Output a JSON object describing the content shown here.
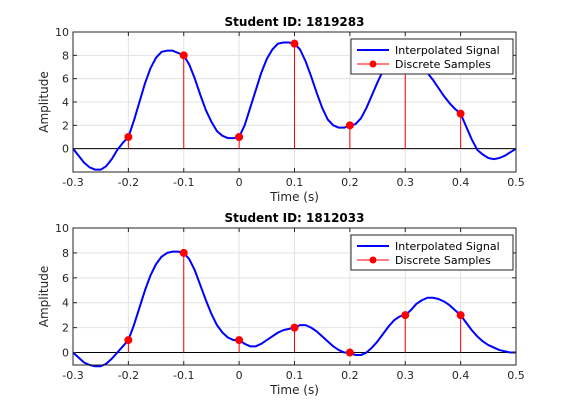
{
  "chart_data": [
    {
      "type": "line",
      "title": "Student ID: 1819283",
      "xlabel": "Time (s)",
      "ylabel": "Amplitude",
      "xlim": [
        -0.3,
        0.5
      ],
      "ylim": [
        -2,
        10
      ],
      "xticks": [
        -0.3,
        -0.2,
        -0.1,
        0,
        0.1,
        0.2,
        0.3,
        0.4,
        0.5
      ],
      "xtick_labels": [
        "-0.3",
        "-0.2",
        "-0.1",
        "0",
        "0.1",
        "0.2",
        "0.3",
        "0.4",
        "0.5"
      ],
      "yticks": [
        0,
        2,
        4,
        6,
        8,
        10
      ],
      "ytick_labels": [
        "0",
        "2",
        "4",
        "6",
        "8",
        "10"
      ],
      "grid": true,
      "legend_position": "top-right",
      "legend": [
        "Interpolated Signal",
        "Discrete Samples"
      ],
      "series": [
        {
          "name": "Interpolated Signal",
          "color": "#0000ff",
          "x": [
            -0.3,
            -0.29,
            -0.28,
            -0.27,
            -0.26,
            -0.25,
            -0.24,
            -0.23,
            -0.22,
            -0.21,
            -0.2,
            -0.19,
            -0.18,
            -0.17,
            -0.16,
            -0.15,
            -0.14,
            -0.13,
            -0.12,
            -0.11,
            -0.1,
            -0.09,
            -0.08,
            -0.07,
            -0.06,
            -0.05,
            -0.04,
            -0.03,
            -0.02,
            -0.01,
            0,
            0.01,
            0.02,
            0.03,
            0.04,
            0.05,
            0.06,
            0.07,
            0.08,
            0.09,
            0.1,
            0.11,
            0.12,
            0.13,
            0.14,
            0.15,
            0.16,
            0.17,
            0.18,
            0.19,
            0.2,
            0.21,
            0.22,
            0.23,
            0.24,
            0.25,
            0.26,
            0.27,
            0.28,
            0.29,
            0.3,
            0.31,
            0.32,
            0.33,
            0.34,
            0.35,
            0.36,
            0.37,
            0.38,
            0.39,
            0.4,
            0.41,
            0.42,
            0.43,
            0.44,
            0.45,
            0.46,
            0.47,
            0.48,
            0.49,
            0.5
          ],
          "y": [
            0,
            -0.6,
            -1.2,
            -1.6,
            -1.8,
            -1.8,
            -1.5,
            -0.9,
            -0.1,
            0.5,
            1,
            2.4,
            4,
            5.6,
            6.9,
            7.8,
            8.3,
            8.4,
            8.4,
            8.2,
            8,
            7.2,
            6,
            4.6,
            3.3,
            2.3,
            1.5,
            1.1,
            0.9,
            0.9,
            1,
            2,
            3.5,
            5,
            6.5,
            7.7,
            8.5,
            9,
            9.1,
            9.1,
            9,
            8.5,
            7.5,
            6.2,
            4.8,
            3.5,
            2.5,
            2,
            1.8,
            1.8,
            2,
            2.1,
            2.6,
            3.5,
            4.6,
            5.7,
            6.7,
            7.3,
            7.6,
            7.6,
            7.5,
            7.5,
            7.4,
            7,
            6.5,
            5.9,
            5.2,
            4.5,
            3.9,
            3.4,
            3,
            1.9,
            0.8,
            -0.1,
            -0.5,
            -0.8,
            -0.9,
            -0.8,
            -0.6,
            -0.3,
            0
          ]
        },
        {
          "name": "Discrete Samples",
          "color": "#ff0000",
          "x": [
            -0.2,
            -0.1,
            0,
            0.1,
            0.2,
            0.3,
            0.4
          ],
          "y": [
            1,
            8,
            1,
            9,
            2,
            7.5,
            3
          ]
        }
      ]
    },
    {
      "type": "line",
      "title": "Student ID: 1812033",
      "xlabel": "Time (s)",
      "ylabel": "Amplitude",
      "xlim": [
        -0.3,
        0.5
      ],
      "ylim": [
        -1,
        10
      ],
      "xticks": [
        -0.3,
        -0.2,
        -0.1,
        0,
        0.1,
        0.2,
        0.3,
        0.4,
        0.5
      ],
      "xtick_labels": [
        "-0.3",
        "-0.2",
        "-0.1",
        "0",
        "0.1",
        "0.2",
        "0.3",
        "0.4",
        "0.5"
      ],
      "yticks": [
        0,
        2,
        4,
        6,
        8,
        10
      ],
      "ytick_labels": [
        "0",
        "2",
        "4",
        "6",
        "8",
        "10"
      ],
      "grid": true,
      "legend_position": "top-right",
      "legend": [
        "Interpolated Signal",
        "Discrete Samples"
      ],
      "series": [
        {
          "name": "Interpolated Signal",
          "color": "#0000ff",
          "x": [
            -0.3,
            -0.29,
            -0.28,
            -0.27,
            -0.26,
            -0.25,
            -0.24,
            -0.23,
            -0.22,
            -0.21,
            -0.2,
            -0.19,
            -0.18,
            -0.17,
            -0.16,
            -0.15,
            -0.14,
            -0.13,
            -0.12,
            -0.11,
            -0.1,
            -0.09,
            -0.08,
            -0.07,
            -0.06,
            -0.05,
            -0.04,
            -0.03,
            -0.02,
            -0.01,
            0,
            0.01,
            0.02,
            0.03,
            0.04,
            0.05,
            0.06,
            0.07,
            0.08,
            0.09,
            0.1,
            0.11,
            0.12,
            0.13,
            0.14,
            0.15,
            0.16,
            0.17,
            0.18,
            0.19,
            0.2,
            0.21,
            0.22,
            0.23,
            0.24,
            0.25,
            0.26,
            0.27,
            0.28,
            0.29,
            0.3,
            0.31,
            0.32,
            0.33,
            0.34,
            0.35,
            0.36,
            0.37,
            0.38,
            0.39,
            0.4,
            0.41,
            0.42,
            0.43,
            0.44,
            0.45,
            0.46,
            0.47,
            0.48,
            0.49,
            0.5
          ],
          "y": [
            0,
            -0.4,
            -0.8,
            -1,
            -1.1,
            -1.1,
            -0.9,
            -0.5,
            0,
            0.5,
            1,
            2.2,
            3.6,
            5,
            6.2,
            7.1,
            7.7,
            8,
            8.1,
            8.1,
            8,
            7.5,
            6.6,
            5.4,
            4.2,
            3.1,
            2.2,
            1.6,
            1.2,
            1,
            1,
            0.7,
            0.5,
            0.5,
            0.7,
            1,
            1.3,
            1.6,
            1.8,
            1.9,
            2,
            2.2,
            2.2,
            2,
            1.7,
            1.3,
            0.9,
            0.5,
            0.2,
            0,
            0,
            -0.2,
            -0.2,
            0,
            0.4,
            0.9,
            1.5,
            2.1,
            2.6,
            2.9,
            3,
            3.4,
            3.9,
            4.2,
            4.4,
            4.4,
            4.3,
            4.1,
            3.8,
            3.4,
            3,
            2.4,
            1.8,
            1.3,
            0.9,
            0.6,
            0.4,
            0.2,
            0.1,
            0,
            0
          ]
        },
        {
          "name": "Discrete Samples",
          "color": "#ff0000",
          "x": [
            -0.2,
            -0.1,
            0,
            0.1,
            0.2,
            0.3,
            0.4
          ],
          "y": [
            1,
            8,
            1,
            2,
            0,
            3,
            3
          ]
        }
      ]
    }
  ]
}
